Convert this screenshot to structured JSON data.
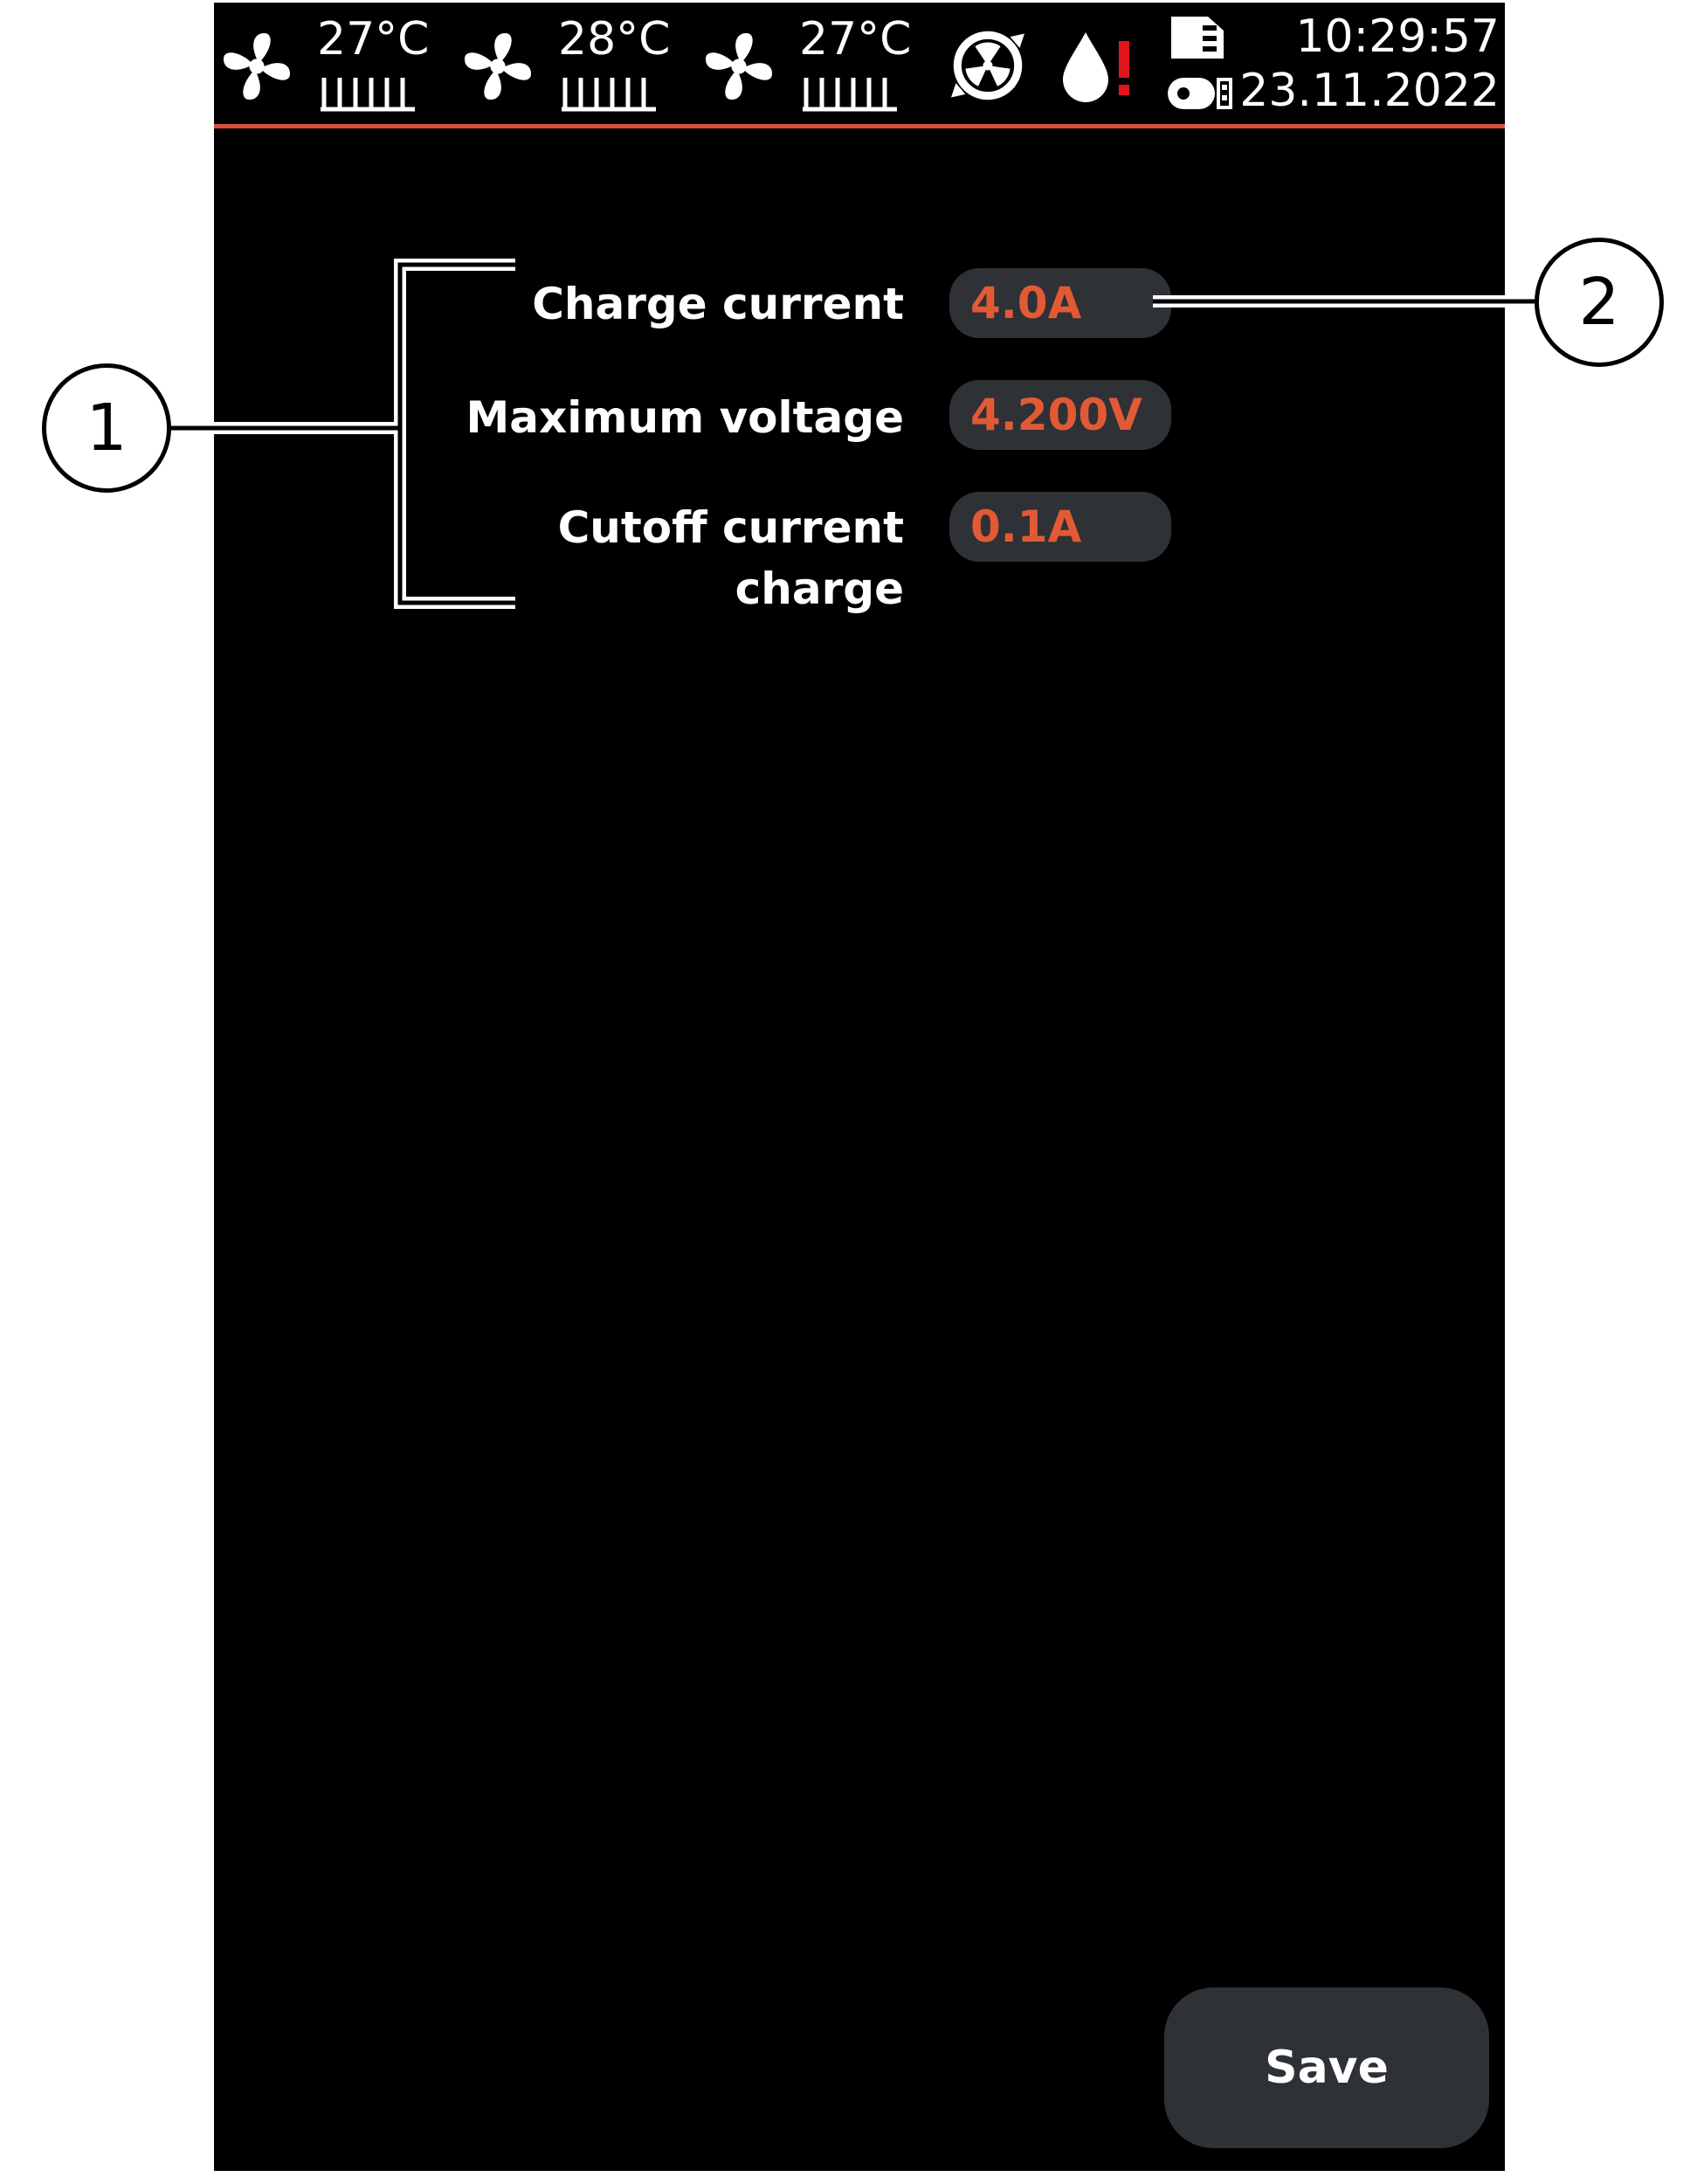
{
  "status_bar": {
    "fans": [
      {
        "icon": "fan-icon",
        "temperature": "27°C"
      },
      {
        "icon": "fan-icon",
        "temperature": "28°C"
      },
      {
        "icon": "fan-icon",
        "temperature": "27°C"
      }
    ],
    "indicators": [
      "radiation-fan-icon",
      "water-drop-warning-icon",
      "sd-card-icon",
      "usb-drive-icon"
    ],
    "time": "10:29:57",
    "date": "23.11.2022",
    "accent_color": "#d9503a"
  },
  "settings": [
    {
      "label": "Charge current",
      "value": "4.0A"
    },
    {
      "label": "Maximum voltage",
      "value": "4.200V"
    },
    {
      "label": "Cutoff current charge",
      "value": "0.1A"
    }
  ],
  "save_label": "Save",
  "callouts": [
    "1",
    "2"
  ],
  "colors": {
    "background": "#000000",
    "value_text": "#e25a35",
    "field_background": "#2e3135"
  }
}
